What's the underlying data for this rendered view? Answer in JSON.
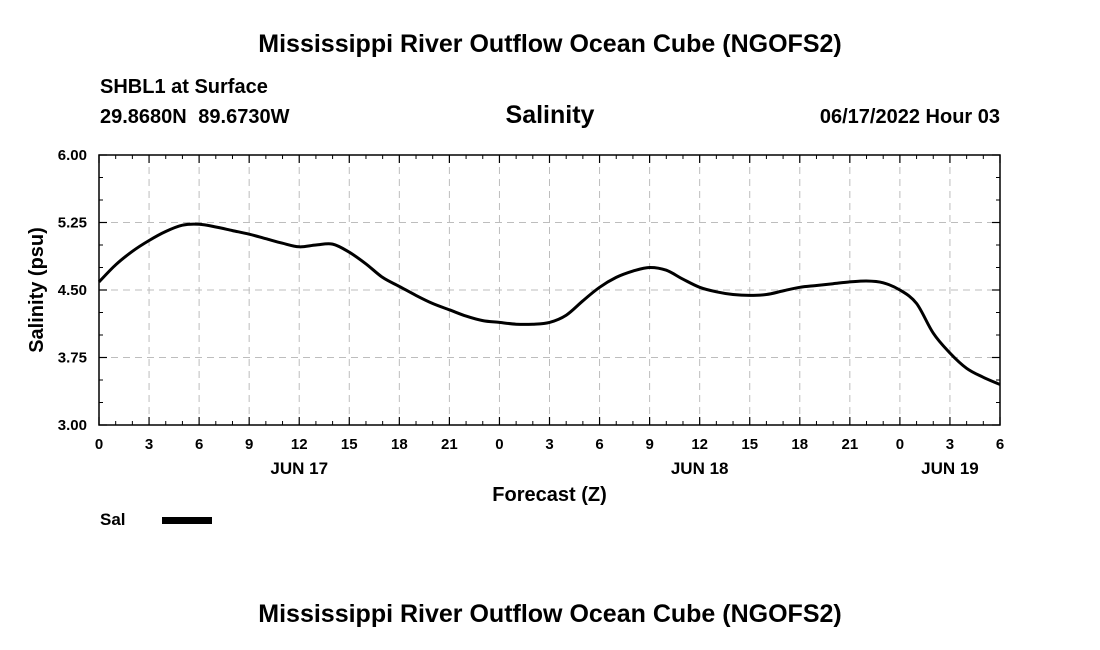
{
  "header": {
    "title": "Mississippi River Outflow Ocean Cube (NGOFS2)",
    "station": "SHBL1 at Surface",
    "coords": "29.8680N 89.6730W",
    "variable": "Salinity",
    "runtime": "06/17/2022 Hour 03"
  },
  "footer": {
    "title": "Mississippi River Outflow Ocean Cube (NGOFS2)"
  },
  "legend": {
    "label": "Sal",
    "color": "#000000"
  },
  "chart_data": {
    "type": "line",
    "xlabel": "Forecast (Z)",
    "ylabel": "Salinity (psu)",
    "ylim": [
      3.0,
      6.0
    ],
    "xlim": [
      0,
      54
    ],
    "y_ticks": [
      "3.00",
      "3.75",
      "4.50",
      "5.25",
      "6.00"
    ],
    "x_ticks": [
      "0",
      "3",
      "6",
      "9",
      "12",
      "15",
      "18",
      "21",
      "0",
      "3",
      "6",
      "9",
      "12",
      "15",
      "18",
      "21",
      "0",
      "3",
      "6"
    ],
    "date_labels": [
      {
        "label": "JUN 17",
        "x": 12
      },
      {
        "label": "JUN 18",
        "x": 36
      },
      {
        "label": "JUN 19",
        "x": 51
      }
    ],
    "grid": true,
    "series": [
      {
        "name": "Sal",
        "color": "#000000",
        "x": [
          0,
          1,
          2,
          3,
          4,
          5,
          6,
          7,
          8,
          9,
          10,
          11,
          12,
          13,
          14,
          15,
          16,
          17,
          18,
          19,
          20,
          21,
          22,
          23,
          24,
          25,
          26,
          27,
          28,
          29,
          30,
          31,
          32,
          33,
          34,
          35,
          36,
          37,
          38,
          39,
          40,
          41,
          42,
          43,
          44,
          45,
          46,
          47,
          48,
          49,
          50,
          51,
          52,
          53,
          54
        ],
        "y": [
          4.59,
          4.78,
          4.93,
          5.05,
          5.15,
          5.22,
          5.23,
          5.2,
          5.16,
          5.12,
          5.07,
          5.02,
          4.98,
          5.0,
          5.01,
          4.92,
          4.79,
          4.64,
          4.54,
          4.44,
          4.35,
          4.28,
          4.21,
          4.16,
          4.14,
          4.12,
          4.12,
          4.14,
          4.22,
          4.38,
          4.53,
          4.64,
          4.71,
          4.75,
          4.72,
          4.62,
          4.53,
          4.48,
          4.45,
          4.44,
          4.45,
          4.49,
          4.53,
          4.55,
          4.57,
          4.59,
          4.6,
          4.58,
          4.5,
          4.35,
          4.02,
          3.8,
          3.63,
          3.53,
          3.45
        ]
      }
    ]
  }
}
